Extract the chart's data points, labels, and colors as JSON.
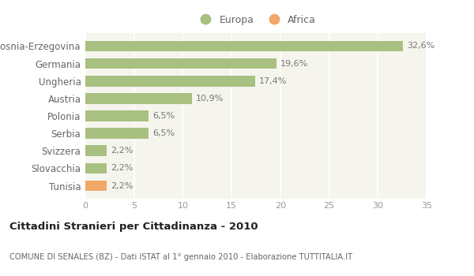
{
  "categories": [
    "Tunisia",
    "Slovacchia",
    "Svizzera",
    "Serbia",
    "Polonia",
    "Austria",
    "Ungheria",
    "Germania",
    "Bosnia-Erzegovina"
  ],
  "values": [
    2.2,
    2.2,
    2.2,
    6.5,
    6.5,
    10.9,
    17.4,
    19.6,
    32.6
  ],
  "labels": [
    "2,2%",
    "2,2%",
    "2,2%",
    "6,5%",
    "6,5%",
    "10,9%",
    "17,4%",
    "19,6%",
    "32,6%"
  ],
  "colors": [
    "#f0a868",
    "#a8c080",
    "#a8c080",
    "#a8c080",
    "#a8c080",
    "#a8c080",
    "#a8c080",
    "#a8c080",
    "#a8c080"
  ],
  "europa_color": "#a8c080",
  "africa_color": "#f0a868",
  "xlim": [
    0,
    35
  ],
  "xticks": [
    0,
    5,
    10,
    15,
    20,
    25,
    30,
    35
  ],
  "title": "Cittadini Stranieri per Cittadinanza - 2010",
  "subtitle": "COMUNE DI SENALES (BZ) - Dati ISTAT al 1° gennaio 2010 - Elaborazione TUTTITALIA.IT",
  "legend_europa": "Europa",
  "legend_africa": "Africa",
  "background_color": "#ffffff",
  "plot_bg_color": "#f5f5ee",
  "label_color": "#777777",
  "ytick_color": "#666666",
  "xtick_color": "#999999",
  "title_color": "#222222",
  "subtitle_color": "#666666"
}
